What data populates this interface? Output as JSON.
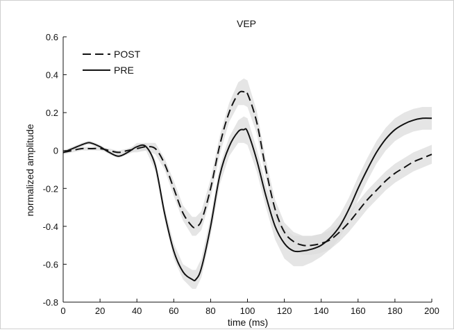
{
  "chart_data": {
    "type": "line",
    "title": "VEP",
    "xlabel": "time (ms)",
    "ylabel": "normalized amplitude",
    "xlim": [
      0,
      200
    ],
    "ylim": [
      -0.8,
      0.6
    ],
    "xticks": [
      "0",
      "20",
      "40",
      "60",
      "80",
      "100",
      "120",
      "140",
      "160",
      "180",
      "200"
    ],
    "yticks": [
      "-0.8",
      "-0.6",
      "-0.4",
      "-0.2",
      "0",
      "0.2",
      "0.4",
      "0.6"
    ],
    "grid": false,
    "legend_position": "top-left",
    "colors": {
      "line": "#111111",
      "band": "#dcdcdc",
      "axis": "#111111"
    },
    "series": [
      {
        "name": "POST",
        "style": "dashed",
        "x": [
          0,
          5,
          10,
          15,
          20,
          25,
          30,
          35,
          40,
          45,
          50,
          55,
          60,
          65,
          70,
          72,
          75,
          80,
          85,
          90,
          95,
          98,
          100,
          105,
          110,
          115,
          120,
          125,
          130,
          135,
          140,
          145,
          150,
          155,
          160,
          165,
          170,
          175,
          180,
          185,
          190,
          195,
          200
        ],
        "y": [
          -0.01,
          0.0,
          0.01,
          0.01,
          0.01,
          0.0,
          -0.01,
          0.0,
          0.01,
          0.02,
          0.01,
          -0.07,
          -0.2,
          -0.33,
          -0.4,
          -0.4,
          -0.37,
          -0.2,
          0.03,
          0.2,
          0.3,
          0.31,
          0.3,
          0.15,
          -0.1,
          -0.31,
          -0.43,
          -0.48,
          -0.5,
          -0.5,
          -0.49,
          -0.47,
          -0.43,
          -0.38,
          -0.32,
          -0.26,
          -0.21,
          -0.16,
          -0.12,
          -0.09,
          -0.06,
          -0.04,
          -0.02
        ],
        "band_halfwidth": [
          0.01,
          0.01,
          0.01,
          0.01,
          0.01,
          0.01,
          0.01,
          0.01,
          0.02,
          0.02,
          0.03,
          0.03,
          0.04,
          0.04,
          0.05,
          0.05,
          0.05,
          0.05,
          0.05,
          0.05,
          0.06,
          0.07,
          0.07,
          0.06,
          0.05,
          0.05,
          0.05,
          0.05,
          0.05,
          0.05,
          0.05,
          0.05,
          0.05,
          0.05,
          0.05,
          0.05,
          0.05,
          0.05,
          0.05,
          0.05,
          0.05,
          0.05,
          0.05
        ]
      },
      {
        "name": "PRE",
        "style": "solid",
        "x": [
          0,
          5,
          10,
          13,
          15,
          20,
          25,
          30,
          35,
          40,
          45,
          50,
          55,
          60,
          65,
          70,
          72,
          75,
          80,
          85,
          90,
          95,
          98,
          100,
          105,
          110,
          115,
          120,
          125,
          130,
          135,
          140,
          145,
          150,
          155,
          160,
          165,
          170,
          175,
          180,
          185,
          190,
          195,
          200
        ],
        "y": [
          -0.01,
          0.01,
          0.03,
          0.04,
          0.04,
          0.02,
          -0.01,
          -0.03,
          -0.01,
          0.02,
          0.02,
          -0.08,
          -0.33,
          -0.53,
          -0.64,
          -0.68,
          -0.68,
          -0.62,
          -0.4,
          -0.13,
          0.02,
          0.1,
          0.11,
          0.1,
          -0.05,
          -0.24,
          -0.4,
          -0.49,
          -0.53,
          -0.53,
          -0.52,
          -0.5,
          -0.46,
          -0.4,
          -0.31,
          -0.2,
          -0.1,
          -0.01,
          0.06,
          0.11,
          0.14,
          0.16,
          0.17,
          0.17
        ],
        "band_halfwidth": [
          0.01,
          0.01,
          0.01,
          0.01,
          0.01,
          0.01,
          0.01,
          0.01,
          0.01,
          0.02,
          0.02,
          0.03,
          0.03,
          0.04,
          0.04,
          0.05,
          0.05,
          0.05,
          0.05,
          0.05,
          0.05,
          0.06,
          0.07,
          0.07,
          0.06,
          0.06,
          0.07,
          0.08,
          0.08,
          0.08,
          0.07,
          0.06,
          0.06,
          0.06,
          0.06,
          0.06,
          0.06,
          0.06,
          0.06,
          0.06,
          0.06,
          0.06,
          0.06,
          0.06
        ]
      }
    ]
  }
}
